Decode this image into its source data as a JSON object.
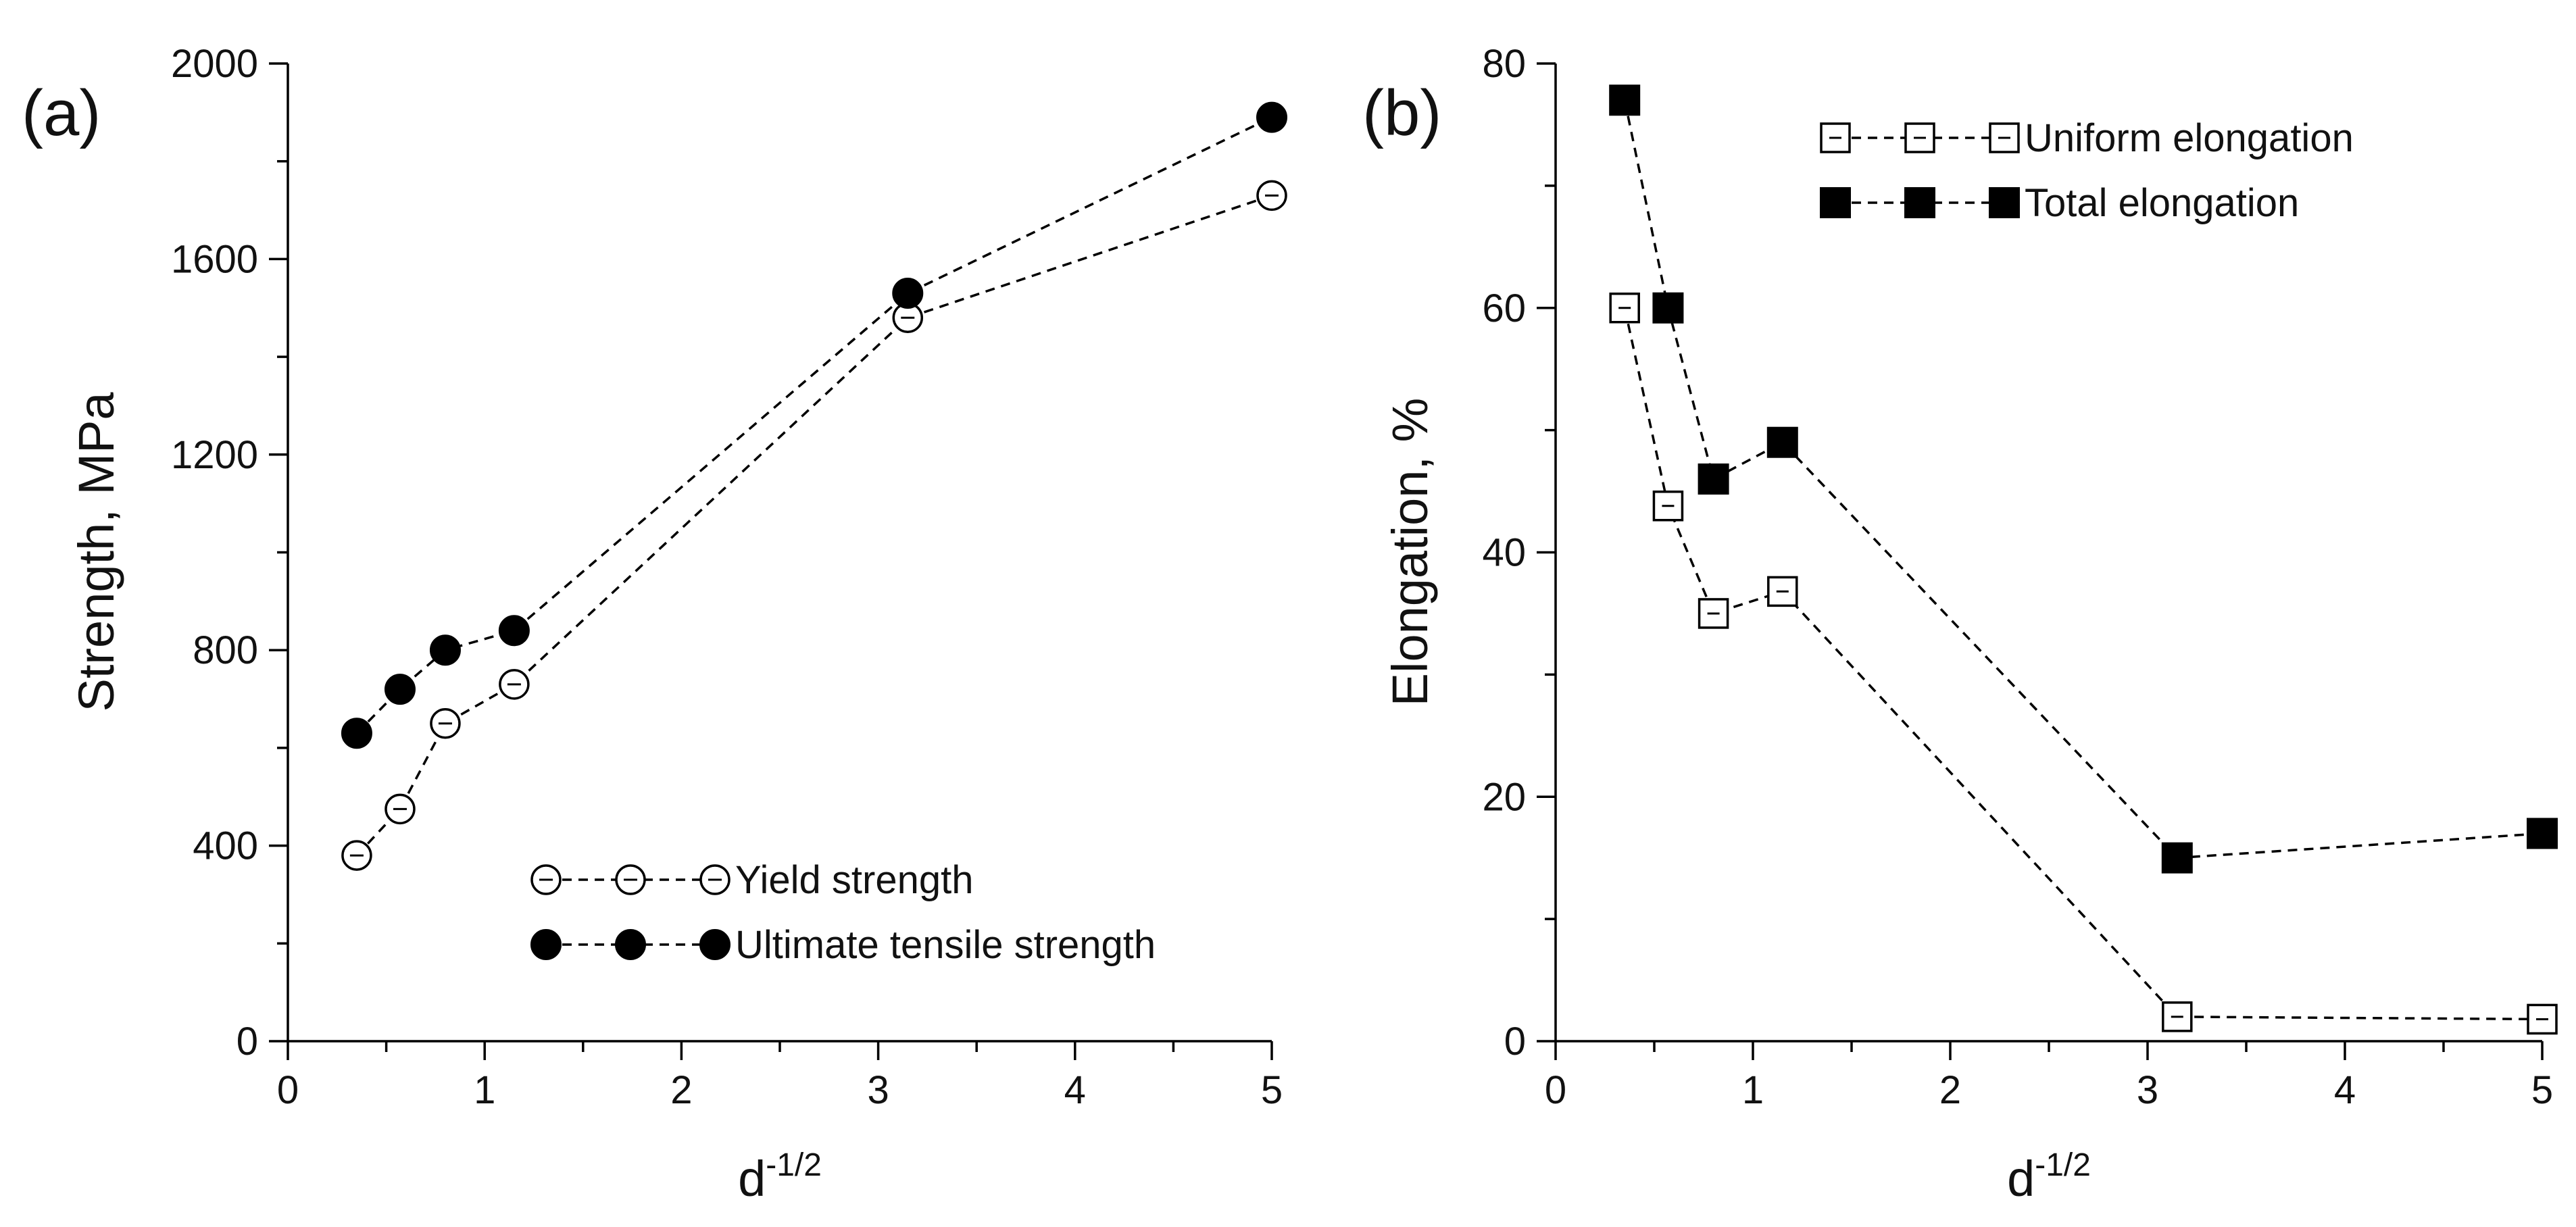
{
  "chart_data": [
    {
      "type": "line",
      "panel_label": "(a)",
      "xlabel_base": "d",
      "xlabel_exp": "-1/2",
      "ylabel": "Strength, MPa",
      "xlim": [
        0,
        5
      ],
      "ylim": [
        0,
        2000
      ],
      "xticks": [
        0,
        1,
        2,
        3,
        4,
        5
      ],
      "yticks": [
        0,
        400,
        800,
        1200,
        1600,
        2000
      ],
      "grid": false,
      "legend_position": "bottom-right",
      "series": [
        {
          "name": "Yield strength",
          "marker": "open-circle",
          "x": [
            0.35,
            0.57,
            0.8,
            1.15,
            3.15,
            5.0
          ],
          "y": [
            380,
            475,
            650,
            730,
            1480,
            1730
          ]
        },
        {
          "name": "Ultimate tensile strength",
          "marker": "filled-circle",
          "x": [
            0.35,
            0.57,
            0.8,
            1.15,
            3.15,
            5.0
          ],
          "y": [
            630,
            720,
            800,
            840,
            1530,
            1890
          ]
        }
      ]
    },
    {
      "type": "line",
      "panel_label": "(b)",
      "xlabel_base": "d",
      "xlabel_exp": "-1/2",
      "ylabel": "Elongation, %",
      "xlim": [
        0,
        5
      ],
      "ylim": [
        0,
        80
      ],
      "xticks": [
        0,
        1,
        2,
        3,
        4,
        5
      ],
      "yticks": [
        0,
        20,
        40,
        60,
        80
      ],
      "grid": false,
      "legend_position": "top-right",
      "series": [
        {
          "name": "Uniform elongation",
          "marker": "open-square",
          "x": [
            0.35,
            0.57,
            0.8,
            1.15,
            3.15,
            5.0
          ],
          "y": [
            60,
            43.8,
            35,
            36.8,
            2,
            1.8
          ]
        },
        {
          "name": "Total elongation",
          "marker": "filled-square",
          "x": [
            0.35,
            0.57,
            0.8,
            1.15,
            3.15,
            5.0
          ],
          "y": [
            77,
            60,
            46,
            49,
            15,
            17
          ]
        }
      ]
    }
  ]
}
